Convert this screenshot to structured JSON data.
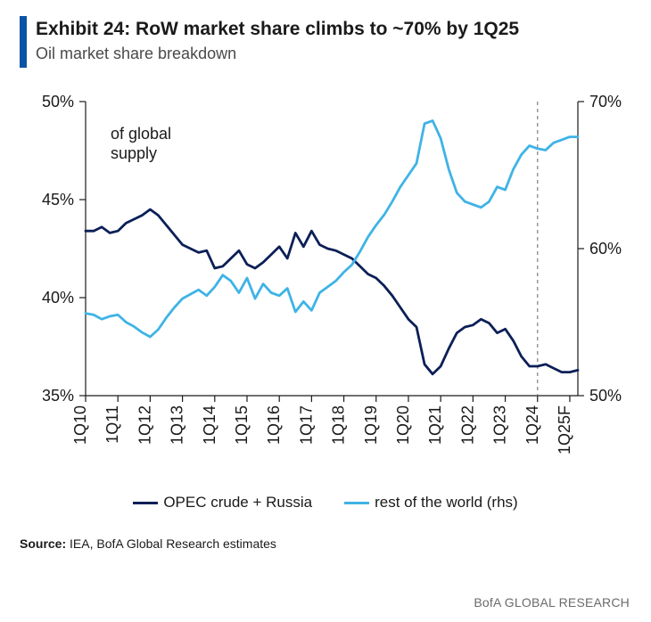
{
  "header": {
    "accent_color": "#0a54a6",
    "title": "Exhibit 24: RoW market share climbs to ~70% by 1Q25",
    "subtitle": "Oil market share breakdown",
    "title_color": "#1a1a1a",
    "subtitle_color": "#4a4a4a",
    "title_fontsize": 21,
    "subtitle_fontsize": 18
  },
  "chart": {
    "type": "line-dual-axis",
    "background_color": "#ffffff",
    "axis_color": "#1a1a1a",
    "axis_stroke_width": 1.2,
    "tick_length": 7,
    "tick_fontsize": 18,
    "tick_color": "#1a1a1a",
    "label_fontsize": 18,
    "annotation": {
      "text1": "of global",
      "text2": "supply"
    },
    "left_axis": {
      "min": 35,
      "max": 50,
      "ticks": [
        35,
        40,
        45,
        50
      ],
      "tick_labels": [
        "35%",
        "40%",
        "45%",
        "50%"
      ]
    },
    "right_axis": {
      "min": 50,
      "max": 70,
      "ticks": [
        50,
        60,
        70
      ],
      "tick_labels": [
        "50%",
        "60%",
        "70%"
      ]
    },
    "x_axis": {
      "labels": [
        "1Q10",
        "1Q11",
        "1Q12",
        "1Q13",
        "1Q14",
        "1Q15",
        "1Q16",
        "1Q17",
        "1Q18",
        "1Q19",
        "1Q20",
        "1Q21",
        "1Q22",
        "1Q23",
        "1Q24",
        "1Q25F"
      ]
    },
    "forecast_divider": {
      "index": 56,
      "stroke": "#888888",
      "dash": "4 4"
    },
    "series": [
      {
        "name": "OPEC crude + Russia",
        "axis": "left",
        "color": "#0b1f57",
        "stroke_width": 2.8,
        "values": [
          43.4,
          43.4,
          43.6,
          43.3,
          43.4,
          43.8,
          44.0,
          44.2,
          44.5,
          44.2,
          43.7,
          43.2,
          42.7,
          42.5,
          42.3,
          42.4,
          41.5,
          41.6,
          42.0,
          42.4,
          41.7,
          41.5,
          41.8,
          42.2,
          42.6,
          42.0,
          43.3,
          42.6,
          43.4,
          42.7,
          42.5,
          42.4,
          42.2,
          42.0,
          41.6,
          41.2,
          41.0,
          40.6,
          40.1,
          39.5,
          38.9,
          38.5,
          36.6,
          36.1,
          36.5,
          37.4,
          38.2,
          38.5,
          38.6,
          38.9,
          38.7,
          38.2,
          38.4,
          37.8,
          37.0,
          36.5,
          36.5,
          36.6,
          36.4,
          36.2,
          36.2,
          36.3
        ]
      },
      {
        "name": "rest of the world (rhs)",
        "axis": "right",
        "color": "#3fb3e6",
        "stroke_width": 2.8,
        "values": [
          55.6,
          55.5,
          55.2,
          55.4,
          55.5,
          55.0,
          54.7,
          54.3,
          54.0,
          54.5,
          55.3,
          56.0,
          56.6,
          56.9,
          57.2,
          56.8,
          57.4,
          58.2,
          57.8,
          57.0,
          58.0,
          56.6,
          57.6,
          57.0,
          56.8,
          57.3,
          55.7,
          56.4,
          55.8,
          57.0,
          57.4,
          57.8,
          58.4,
          58.9,
          59.8,
          60.8,
          61.6,
          62.3,
          63.2,
          64.2,
          65.0,
          65.8,
          68.5,
          68.7,
          67.5,
          65.4,
          63.8,
          63.2,
          63.0,
          62.8,
          63.2,
          64.2,
          64.0,
          65.4,
          66.4,
          67.0,
          66.8,
          66.7,
          67.2,
          67.4,
          67.6,
          67.6
        ]
      }
    ]
  },
  "legend": {
    "fontsize": 17,
    "items": [
      {
        "label": "OPEC crude + Russia",
        "color": "#0b1f57"
      },
      {
        "label": "rest of the world (rhs)",
        "color": "#3fb3e6"
      }
    ]
  },
  "source": {
    "label": "Source:",
    "text": "IEA, BofA Global Research estimates",
    "fontsize": 14
  },
  "footer": {
    "text": "BofA GLOBAL RESEARCH",
    "color": "#6b6b6b"
  }
}
